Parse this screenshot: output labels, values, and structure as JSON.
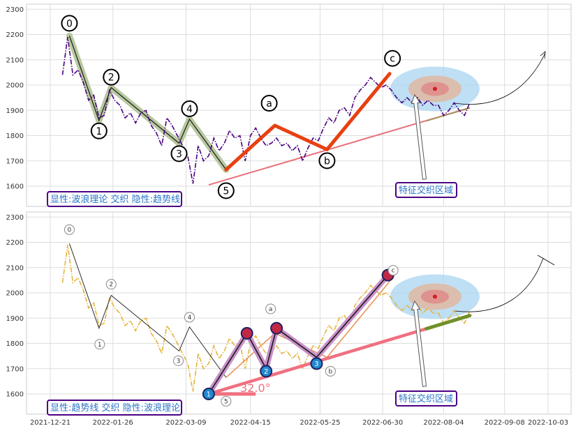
{
  "chart_data": [
    {
      "type": "line",
      "panel": "top",
      "title": "",
      "xlabel": "",
      "ylabel": "",
      "ylim": [
        1520,
        2320
      ],
      "yticks": [
        1600,
        1700,
        1800,
        1900,
        2000,
        2100,
        2200,
        2300
      ],
      "grid": true,
      "annotation": "显性:波浪理论 交织 隐性:趋势线",
      "region_label": "特征交织区域",
      "price_color": "#4b0082",
      "price": {
        "x": [
          "2021-12-28",
          "2021-12-31",
          "2022-01-03",
          "2022-01-06",
          "2022-01-09",
          "2022-01-12",
          "2022-01-15",
          "2022-01-18",
          "2022-01-21",
          "2022-01-24",
          "2022-01-27",
          "2022-01-30",
          "2022-02-02",
          "2022-02-05",
          "2022-02-08",
          "2022-02-11",
          "2022-02-14",
          "2022-02-17",
          "2022-02-20",
          "2022-02-23",
          "2022-02-26",
          "2022-03-01",
          "2022-03-04",
          "2022-03-07",
          "2022-03-10",
          "2022-03-13",
          "2022-03-16",
          "2022-03-19",
          "2022-03-22",
          "2022-03-25",
          "2022-03-28",
          "2022-03-31",
          "2022-04-03",
          "2022-04-06",
          "2022-04-09",
          "2022-04-12",
          "2022-04-15",
          "2022-04-18",
          "2022-04-21",
          "2022-04-24",
          "2022-04-27",
          "2022-04-30",
          "2022-05-03",
          "2022-05-06",
          "2022-05-09",
          "2022-05-12",
          "2022-05-15",
          "2022-05-18",
          "2022-05-21",
          "2022-05-24",
          "2022-05-27",
          "2022-05-30",
          "2022-06-02",
          "2022-06-05",
          "2022-06-08",
          "2022-06-11",
          "2022-06-14",
          "2022-06-17",
          "2022-06-20",
          "2022-06-23",
          "2022-06-26",
          "2022-06-29",
          "2022-07-02",
          "2022-07-05",
          "2022-07-08",
          "2022-07-11",
          "2022-07-14",
          "2022-07-17",
          "2022-07-20",
          "2022-07-23",
          "2022-07-26",
          "2022-07-29",
          "2022-08-01",
          "2022-08-04",
          "2022-08-07",
          "2022-08-10",
          "2022-08-13",
          "2022-08-16",
          "2022-08-19"
        ],
        "y": [
          2040,
          2190,
          2040,
          2060,
          2010,
          1940,
          1960,
          1870,
          1880,
          1980,
          1940,
          1920,
          1870,
          1890,
          1850,
          1890,
          1900,
          1840,
          1810,
          1760,
          1870,
          1840,
          1800,
          1760,
          1720,
          1610,
          1760,
          1700,
          1720,
          1790,
          1740,
          1770,
          1820,
          1790,
          1800,
          1700,
          1800,
          1830,
          1790,
          1760,
          1770,
          1790,
          1760,
          1770,
          1740,
          1760,
          1700,
          1750,
          1790,
          1780,
          1830,
          1870,
          1850,
          1900,
          1910,
          1880,
          1950,
          1980,
          2000,
          2030,
          2010,
          1990,
          2000,
          1980,
          1950,
          1930,
          1950,
          1930,
          1950,
          1920,
          1940,
          1920,
          1920,
          1880,
          1900,
          1930,
          1900,
          1880,
          1930
        ]
      },
      "wave_points": [
        {
          "label": "0",
          "x": "2022-01-01",
          "y": 2195
        },
        {
          "label": "1",
          "x": "2022-01-18",
          "y": 1860
        },
        {
          "label": "2",
          "x": "2022-01-25",
          "y": 1990
        },
        {
          "label": "3",
          "x": "2022-03-05",
          "y": 1770
        },
        {
          "label": "4",
          "x": "2022-03-11",
          "y": 1865
        },
        {
          "label": "5",
          "x": "2022-04-01",
          "y": 1665
        },
        {
          "label": "a",
          "x": "2022-04-29",
          "y": 1840
        },
        {
          "label": "b",
          "x": "2022-05-29",
          "y": 1745
        },
        {
          "label": "c",
          "x": "2022-07-04",
          "y": 2045
        }
      ],
      "trend_line": {
        "from": {
          "x": "2022-03-22",
          "y": 1605
        },
        "to": {
          "x": "2022-08-19",
          "y": 1910
        }
      },
      "target": {
        "x": "2022-07-30",
        "y": 1985
      }
    },
    {
      "type": "line",
      "panel": "bottom",
      "title": "",
      "xlabel": "",
      "ylabel": "",
      "ylim": [
        1520,
        2320
      ],
      "yticks": [
        1600,
        1700,
        1800,
        1900,
        2000,
        2100,
        2200,
        2300
      ],
      "xticks": [
        "2021-12-21",
        "2022-01-26",
        "2022-03-09",
        "2022-04-15",
        "2022-05-25",
        "2022-06-30",
        "2022-08-04",
        "2022-09-08",
        "2022-10-03"
      ],
      "grid": true,
      "annotation": "显性:趋势线 交织 隐性:波浪理论",
      "region_label": "特征交织区域",
      "angle_label": "32.0°",
      "price_color": "#e6b43c",
      "wave_labels": [
        "0",
        "1",
        "2",
        "3",
        "4",
        "5",
        "a",
        "b",
        "c"
      ],
      "touch_points": [
        {
          "label": "1",
          "x": "2022-03-22",
          "y": 1600
        },
        {
          "label": "2",
          "x": "2022-04-24",
          "y": 1690
        },
        {
          "label": "3",
          "x": "2022-05-23",
          "y": 1720
        },
        {
          "label": "",
          "x": "2022-04-13",
          "y": 1840
        },
        {
          "label": "",
          "x": "2022-04-30",
          "y": 1860
        },
        {
          "label": "",
          "x": "2022-07-03",
          "y": 2070
        }
      ]
    }
  ]
}
